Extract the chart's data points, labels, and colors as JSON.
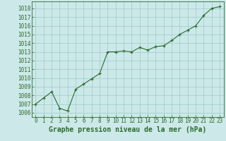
{
  "x": [
    0,
    1,
    2,
    3,
    4,
    5,
    6,
    7,
    8,
    9,
    10,
    11,
    12,
    13,
    14,
    15,
    16,
    17,
    18,
    19,
    20,
    21,
    22,
    23
  ],
  "y": [
    1007.0,
    1007.7,
    1008.4,
    1006.5,
    1006.2,
    1008.7,
    1009.3,
    1009.9,
    1010.5,
    1013.0,
    1013.0,
    1013.1,
    1013.0,
    1013.5,
    1013.2,
    1013.6,
    1013.7,
    1014.3,
    1015.0,
    1015.5,
    1016.0,
    1017.2,
    1018.0,
    1018.2
  ],
  "line_color": "#2d6a2d",
  "marker": "+",
  "marker_size": 3,
  "marker_color": "#2d6a2d",
  "bg_color": "#cce8e8",
  "grid_color": "#99cccc",
  "ylabel_ticks": [
    1006,
    1007,
    1008,
    1009,
    1010,
    1011,
    1012,
    1013,
    1014,
    1015,
    1016,
    1017,
    1018
  ],
  "xlabel": "Graphe pression niveau de la mer (hPa)",
  "xlabel_color": "#2d6a2d",
  "xlabel_fontsize": 7,
  "tick_color": "#2d6a2d",
  "tick_fontsize": 5.5,
  "ylim": [
    1005.5,
    1018.8
  ],
  "xlim": [
    -0.5,
    23.5
  ]
}
